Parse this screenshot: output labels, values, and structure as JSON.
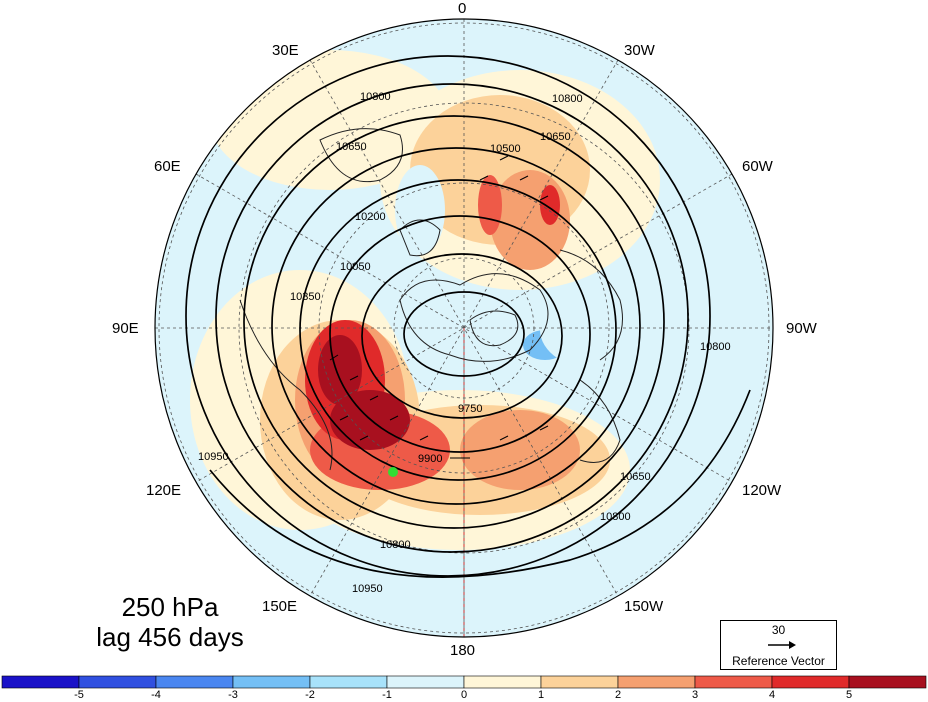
{
  "title": {
    "line1": "250 hPa",
    "line2": "lag 456 days"
  },
  "longitude_labels": {
    "top": "0",
    "bottom": "180",
    "lon_30e": "30E",
    "lon_30w": "30W",
    "lon_60e": "60E",
    "lon_60w": "60W",
    "lon_90e": "90E",
    "lon_90w": "90W",
    "lon_120e": "120E",
    "lon_120w": "120W",
    "lon_150e": "150E",
    "lon_150w": "150W"
  },
  "reference_vector": {
    "value": "30",
    "label": "Reference Vector"
  },
  "colorbar": {
    "ticks": [
      "-5",
      "-4",
      "-3",
      "-2",
      "-1",
      "0",
      "1",
      "2",
      "3",
      "4",
      "5"
    ],
    "colors": [
      "#1a12c8",
      "#3050e0",
      "#4a86f0",
      "#74bff5",
      "#a8e2fa",
      "#dcf4fb",
      "#fff6d8",
      "#fcd29a",
      "#f5a070",
      "#ee5a48",
      "#e02a2a",
      "#a8101f"
    ]
  },
  "contour_labels": [
    "10800",
    "10650",
    "10500",
    "10350",
    "10200",
    "10050",
    "9900",
    "9750",
    "10950"
  ],
  "map": {
    "projection": "polar-stereographic-north",
    "field": "250 hPa geopotential height contours with shaded anomaly",
    "marker_color": "#33dd33"
  }
}
